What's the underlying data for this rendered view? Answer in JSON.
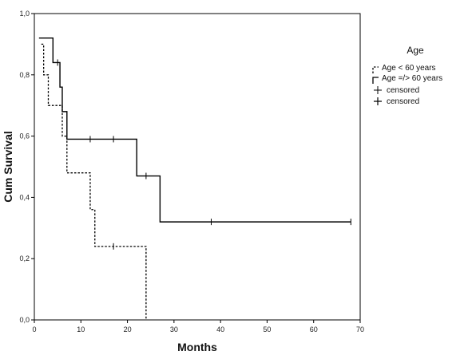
{
  "chart_data": {
    "type": "line",
    "xlabel": "Months",
    "ylabel": "Cum Survival",
    "xlim": [
      0,
      70
    ],
    "ylim": [
      0,
      1
    ],
    "xticks": [
      "0",
      "10",
      "20",
      "30",
      "40",
      "50",
      "60",
      "70"
    ],
    "yticks": [
      "0,0",
      "0,2",
      "0,4",
      "0,6",
      "0,8",
      "1,0"
    ],
    "legend": {
      "title": "Age",
      "placement": "right",
      "entries": [
        "Age < 60 years",
        "Age =/> 60 years",
        "censored",
        "censored"
      ]
    },
    "series": [
      {
        "name": "Age < 60 years",
        "style": "dashed",
        "color": "#000000",
        "steps": [
          [
            1.5,
            0.9
          ],
          [
            2,
            0.8
          ],
          [
            3,
            0.7
          ],
          [
            6,
            0.6
          ],
          [
            7,
            0.48
          ],
          [
            12,
            0.36
          ],
          [
            13,
            0.24
          ],
          [
            24,
            0.0
          ]
        ],
        "censored": [
          [
            17,
            0.24
          ]
        ]
      },
      {
        "name": "Age =/> 60 years",
        "style": "solid",
        "color": "#000000",
        "steps": [
          [
            1,
            0.92
          ],
          [
            4,
            0.84
          ],
          [
            5.5,
            0.76
          ],
          [
            6,
            0.68
          ],
          [
            7,
            0.59
          ],
          [
            22,
            0.47
          ],
          [
            27,
            0.32
          ],
          [
            68,
            0.32
          ]
        ],
        "censored": [
          [
            5,
            0.84
          ],
          [
            12,
            0.59
          ],
          [
            17,
            0.59
          ],
          [
            24,
            0.47
          ],
          [
            38,
            0.32
          ],
          [
            68,
            0.32
          ]
        ]
      }
    ]
  }
}
